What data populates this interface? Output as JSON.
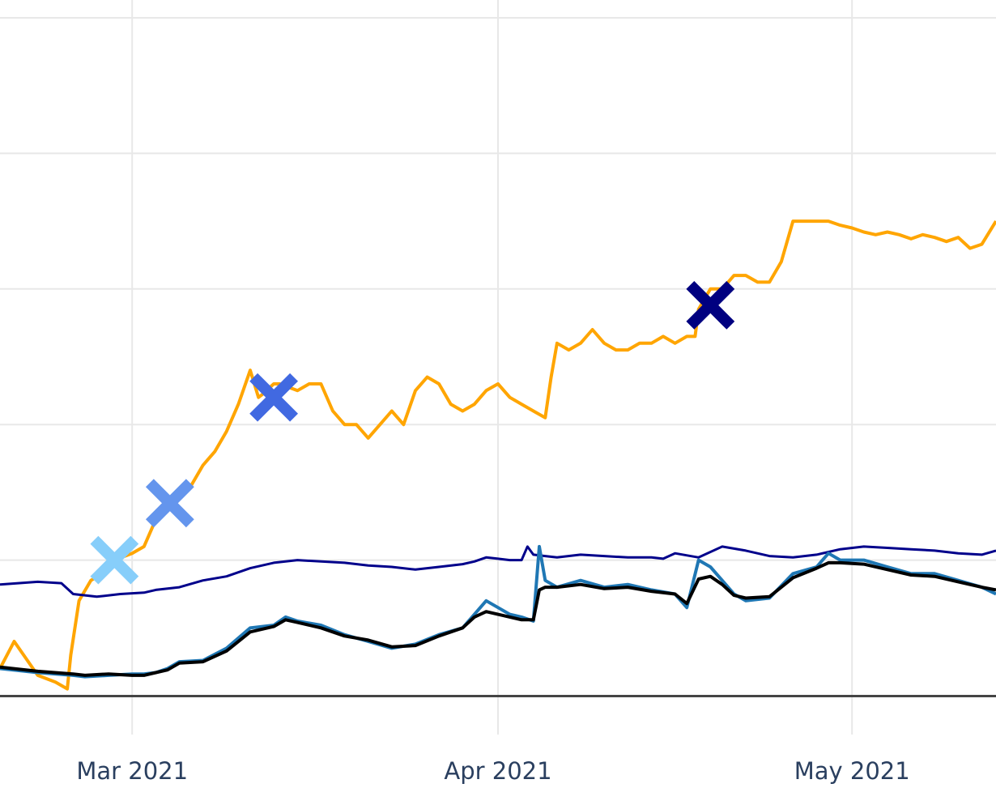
{
  "chart_data": {
    "type": "line",
    "title": "",
    "xlabel": "",
    "ylabel": "",
    "grid": true,
    "x_ticks": [
      "Mar 2021",
      "Apr 2021",
      "May 2021"
    ],
    "x_tick_values": [
      0,
      31,
      61
    ],
    "xlim": [
      -11.2,
      73.2
    ],
    "ylim": [
      0,
      5
    ],
    "ygrid": [
      0,
      1,
      2,
      3,
      4,
      5
    ],
    "series": [
      {
        "name": "orange-series",
        "color": "#FFA500",
        "x": [
          -11.2,
          -10,
          -8,
          -6.5,
          -5.5,
          -5.2,
          -4.5,
          -3.5,
          -2.5,
          -1.5,
          0,
          1,
          2,
          3,
          3.5,
          5,
          6,
          7,
          8,
          9,
          10,
          10.7,
          11,
          12,
          12.5,
          14,
          15,
          16,
          17,
          18,
          19,
          20,
          21,
          22,
          23,
          24,
          25,
          26,
          27,
          28,
          29,
          30,
          31,
          32,
          33,
          34,
          35,
          35.5,
          36,
          37,
          38,
          39,
          40,
          41,
          42,
          43,
          44,
          45,
          46,
          47,
          47.7,
          48,
          49,
          50,
          51,
          52,
          53,
          54,
          55,
          56,
          57,
          58,
          59,
          60,
          61,
          62,
          63,
          64,
          65,
          66,
          67,
          68,
          69,
          70,
          71,
          72,
          73.2
        ],
        "values": [
          0.2,
          0.4,
          0.15,
          0.1,
          0.05,
          0.3,
          0.7,
          0.85,
          0.9,
          1.0,
          1.05,
          1.1,
          1.3,
          1.4,
          1.45,
          1.55,
          1.7,
          1.8,
          1.95,
          2.15,
          2.4,
          2.2,
          2.22,
          2.3,
          2.3,
          2.25,
          2.3,
          2.3,
          2.1,
          2.0,
          2.0,
          1.9,
          2.0,
          2.1,
          2.0,
          2.25,
          2.35,
          2.3,
          2.15,
          2.1,
          2.15,
          2.25,
          2.3,
          2.2,
          2.15,
          2.1,
          2.05,
          2.35,
          2.6,
          2.55,
          2.6,
          2.7,
          2.6,
          2.55,
          2.55,
          2.6,
          2.6,
          2.65,
          2.6,
          2.65,
          2.65,
          2.85,
          3.0,
          3.0,
          3.1,
          3.1,
          3.05,
          3.05,
          3.2,
          3.5,
          3.5,
          3.5,
          3.5,
          3.47,
          3.45,
          3.42,
          3.4,
          3.42,
          3.4,
          3.37,
          3.4,
          3.38,
          3.35,
          3.38,
          3.3,
          3.33,
          3.5
        ]
      },
      {
        "name": "navy-series",
        "color": "#00008B",
        "x": [
          -11.2,
          -8,
          -6,
          -5,
          -3,
          -1,
          1,
          2,
          4,
          6,
          8,
          10,
          12,
          14,
          16,
          18,
          20,
          22,
          24,
          26,
          28,
          29,
          30,
          31,
          32,
          33,
          33.5,
          34,
          35,
          36,
          38,
          40,
          42,
          44,
          45,
          46,
          48,
          50,
          52,
          54,
          56,
          58,
          60,
          62,
          64,
          66,
          68,
          70,
          72,
          73.2
        ],
        "values": [
          0.82,
          0.84,
          0.83,
          0.75,
          0.73,
          0.75,
          0.76,
          0.78,
          0.8,
          0.85,
          0.88,
          0.94,
          0.98,
          1.0,
          0.99,
          0.98,
          0.96,
          0.95,
          0.93,
          0.95,
          0.97,
          0.99,
          1.02,
          1.01,
          1.0,
          1.0,
          1.1,
          1.04,
          1.03,
          1.02,
          1.04,
          1.03,
          1.02,
          1.02,
          1.01,
          1.05,
          1.02,
          1.1,
          1.07,
          1.03,
          1.02,
          1.04,
          1.08,
          1.1,
          1.09,
          1.08,
          1.07,
          1.05,
          1.04,
          1.07
        ]
      },
      {
        "name": "blue-series",
        "color": "#1F77B4",
        "x": [
          -11.2,
          -8,
          -5,
          -4,
          -2,
          0,
          1,
          2,
          3,
          4,
          6,
          8,
          10,
          12,
          13,
          14,
          16,
          18,
          20,
          22,
          24,
          26,
          28,
          29,
          30,
          31,
          32,
          33,
          34,
          34.5,
          35,
          36,
          38,
          40,
          42,
          44,
          46,
          47,
          48,
          49,
          50,
          51,
          52,
          54,
          56,
          58,
          59,
          60,
          62,
          64,
          66,
          68,
          70,
          72,
          73.2
        ],
        "values": [
          0.2,
          0.17,
          0.15,
          0.14,
          0.15,
          0.16,
          0.16,
          0.17,
          0.2,
          0.25,
          0.26,
          0.35,
          0.5,
          0.52,
          0.58,
          0.55,
          0.52,
          0.45,
          0.4,
          0.35,
          0.38,
          0.45,
          0.5,
          0.6,
          0.7,
          0.65,
          0.6,
          0.58,
          0.55,
          1.1,
          0.85,
          0.8,
          0.85,
          0.8,
          0.82,
          0.78,
          0.75,
          0.65,
          1.0,
          0.95,
          0.85,
          0.75,
          0.7,
          0.72,
          0.9,
          0.95,
          1.05,
          1.0,
          1.0,
          0.95,
          0.9,
          0.9,
          0.85,
          0.8,
          0.75
        ]
      },
      {
        "name": "black-series",
        "color": "#000000",
        "x": [
          -11.2,
          -8,
          -5,
          -4,
          -2,
          0,
          1,
          2,
          3,
          4,
          6,
          8,
          10,
          12,
          13,
          14,
          16,
          18,
          20,
          22,
          24,
          26,
          28,
          29,
          30,
          31,
          32,
          33,
          34,
          34.5,
          35,
          36,
          38,
          40,
          42,
          44,
          46,
          47,
          48,
          49,
          50,
          51,
          52,
          54,
          56,
          58,
          59,
          60,
          62,
          64,
          66,
          68,
          70,
          72,
          73.2
        ],
        "values": [
          0.21,
          0.18,
          0.16,
          0.15,
          0.16,
          0.15,
          0.15,
          0.17,
          0.19,
          0.24,
          0.25,
          0.33,
          0.47,
          0.51,
          0.56,
          0.54,
          0.5,
          0.44,
          0.41,
          0.36,
          0.37,
          0.44,
          0.5,
          0.58,
          0.62,
          0.6,
          0.58,
          0.56,
          0.56,
          0.78,
          0.8,
          0.8,
          0.82,
          0.79,
          0.8,
          0.77,
          0.75,
          0.68,
          0.86,
          0.88,
          0.82,
          0.74,
          0.72,
          0.73,
          0.87,
          0.94,
          0.98,
          0.98,
          0.97,
          0.93,
          0.89,
          0.88,
          0.84,
          0.8,
          0.78
        ]
      }
    ],
    "markers": [
      {
        "name": "marker-1",
        "x": -1.5,
        "y": 1.0,
        "color": "#87CEFA",
        "symbol": "x"
      },
      {
        "name": "marker-2",
        "x": 3.2,
        "y": 1.42,
        "color": "#6495ED",
        "symbol": "x"
      },
      {
        "name": "marker-3",
        "x": 12.0,
        "y": 2.2,
        "color": "#4169E1",
        "symbol": "x"
      },
      {
        "name": "marker-4",
        "x": 49.0,
        "y": 2.88,
        "color": "#000080",
        "symbol": "x"
      }
    ]
  }
}
